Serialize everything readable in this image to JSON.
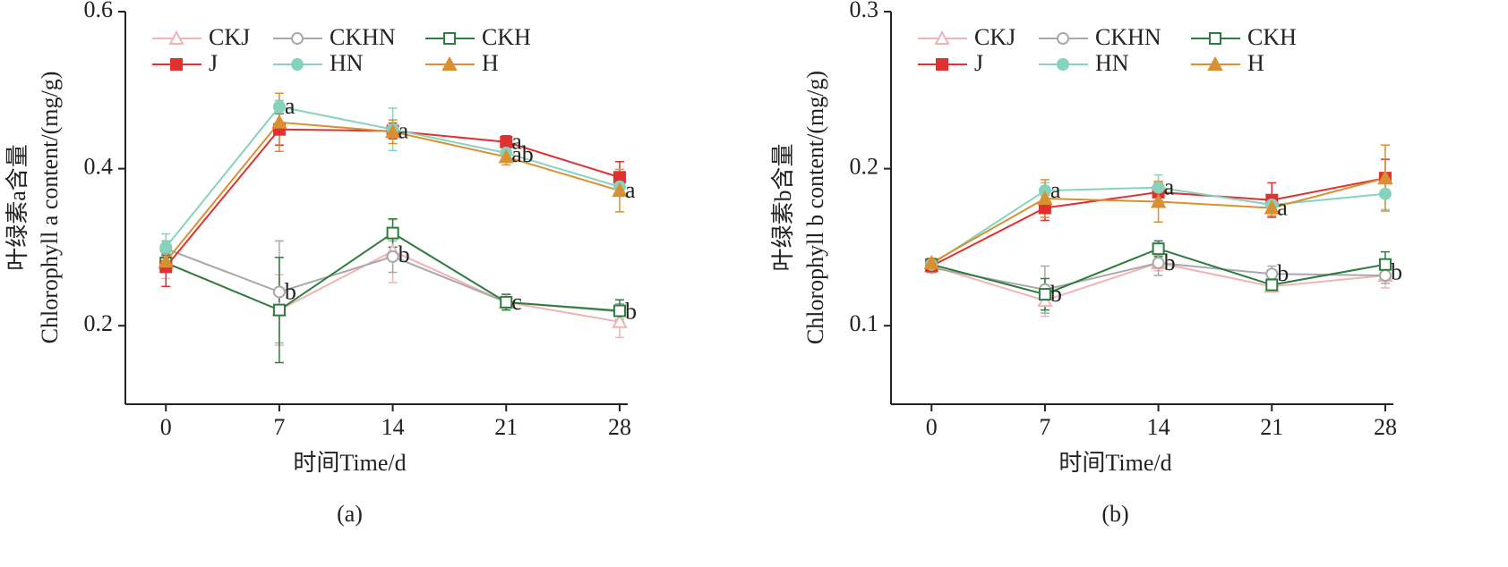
{
  "chart_data": [
    {
      "type": "line",
      "title": "(a)",
      "xlabel": "时间Time/d",
      "ylabel": [
        "叶绿素a含量",
        "Chlorophyll a content/(mg/g)"
      ],
      "x": [
        0,
        7,
        14,
        21,
        28
      ],
      "xlim": [
        -2.5,
        28.5
      ],
      "xticks": [
        0,
        7,
        14,
        21,
        28
      ],
      "ylim": [
        0.1,
        0.6
      ],
      "yticks": [
        0.2,
        0.4,
        0.6
      ],
      "legend": "upper left",
      "series": [
        {
          "name": "CKJ",
          "color": "#f2b3b5",
          "marker": "triangle-open",
          "values": [
            0.28,
            0.22,
            0.295,
            0.23,
            0.205
          ],
          "errors": [
            0.02,
            0.045,
            0.04,
            0.01,
            0.02
          ]
        },
        {
          "name": "CKHN",
          "color": "#a9a9a9",
          "marker": "circle-open",
          "values": [
            0.298,
            0.243,
            0.288,
            0.23,
            0.218
          ],
          "errors": [
            0.01,
            0.065,
            0.02,
            0.01,
            0.01
          ]
        },
        {
          "name": "CKH",
          "color": "#2e7d3e",
          "marker": "square-open",
          "values": [
            0.28,
            0.22,
            0.318,
            0.23,
            0.219
          ],
          "errors": [
            0.01,
            0.067,
            0.018,
            0.01,
            0.014
          ]
        },
        {
          "name": "J",
          "color": "#e03030",
          "marker": "square",
          "values": [
            0.275,
            0.45,
            0.448,
            0.434,
            0.389
          ],
          "errors": [
            0.025,
            0.02,
            0.01,
            0.008,
            0.02
          ]
        },
        {
          "name": "HN",
          "color": "#86d3bd",
          "marker": "circle",
          "values": [
            0.3,
            0.479,
            0.45,
            0.42,
            0.377
          ],
          "errors": [
            0.017,
            0.008,
            0.027,
            0.01,
            0.01
          ]
        },
        {
          "name": "H",
          "color": "#d99030",
          "marker": "triangle",
          "values": [
            0.282,
            0.459,
            0.447,
            0.415,
            0.372
          ],
          "errors": [
            0.01,
            0.037,
            0.015,
            0.01,
            0.027
          ]
        }
      ],
      "annotations": [
        {
          "text": "a",
          "x": 7,
          "y": 0.479
        },
        {
          "text": "a",
          "x": 14,
          "y": 0.448
        },
        {
          "text": "a",
          "x": 21,
          "y": 0.434
        },
        {
          "text": "ab",
          "x": 21,
          "y": 0.418
        },
        {
          "text": "a",
          "x": 28,
          "y": 0.372
        },
        {
          "text": "b",
          "x": 7,
          "y": 0.243
        },
        {
          "text": "b",
          "x": 14,
          "y": 0.29
        },
        {
          "text": "c",
          "x": 21,
          "y": 0.23
        },
        {
          "text": "b",
          "x": 28,
          "y": 0.218
        }
      ]
    },
    {
      "type": "line",
      "title": "(b)",
      "xlabel": "时间Time/d",
      "ylabel": [
        "叶绿素b含量",
        "Chlorophyll b content/(mg/g)"
      ],
      "x": [
        0,
        7,
        14,
        21,
        28
      ],
      "xlim": [
        -2.5,
        28.5
      ],
      "xticks": [
        0,
        7,
        14,
        21,
        28
      ],
      "ylim": [
        0.05,
        0.3
      ],
      "yticks": [
        0.1,
        0.2,
        0.3
      ],
      "legend": "upper left",
      "series": [
        {
          "name": "CKJ",
          "color": "#f2b3b5",
          "marker": "triangle-open",
          "values": [
            0.138,
            0.116,
            0.14,
            0.125,
            0.132
          ],
          "errors": [
            0.003,
            0.01,
            0.005,
            0.003,
            0.008
          ]
        },
        {
          "name": "CKHN",
          "color": "#a9a9a9",
          "marker": "circle-open",
          "values": [
            0.137,
            0.123,
            0.14,
            0.133,
            0.132
          ],
          "errors": [
            0.003,
            0.015,
            0.008,
            0.005,
            0.005
          ]
        },
        {
          "name": "CKH",
          "color": "#2e7d3e",
          "marker": "square-open",
          "values": [
            0.139,
            0.12,
            0.149,
            0.126,
            0.139
          ],
          "errors": [
            0.003,
            0.01,
            0.005,
            0.003,
            0.008
          ]
        },
        {
          "name": "J",
          "color": "#e03030",
          "marker": "square",
          "values": [
            0.138,
            0.175,
            0.185,
            0.18,
            0.194
          ],
          "errors": [
            0.004,
            0.008,
            0.006,
            0.011,
            0.012
          ]
        },
        {
          "name": "HN",
          "color": "#86d3bd",
          "marker": "circle",
          "values": [
            0.139,
            0.186,
            0.188,
            0.177,
            0.184
          ],
          "errors": [
            0.003,
            0.005,
            0.008,
            0.004,
            0.01
          ]
        },
        {
          "name": "H",
          "color": "#d99030",
          "marker": "triangle",
          "values": [
            0.14,
            0.181,
            0.179,
            0.175,
            0.194
          ],
          "errors": [
            0.003,
            0.012,
            0.013,
            0.005,
            0.021
          ]
        }
      ],
      "annotations": [
        {
          "text": "a",
          "x": 7,
          "y": 0.186
        },
        {
          "text": "a",
          "x": 14,
          "y": 0.188
        },
        {
          "text": "a",
          "x": 21,
          "y": 0.175
        },
        {
          "text": "b",
          "x": 7,
          "y": 0.12
        },
        {
          "text": "b",
          "x": 14,
          "y": 0.14
        },
        {
          "text": "b",
          "x": 21,
          "y": 0.133
        },
        {
          "text": "b",
          "x": 28,
          "y": 0.134
        }
      ]
    }
  ]
}
